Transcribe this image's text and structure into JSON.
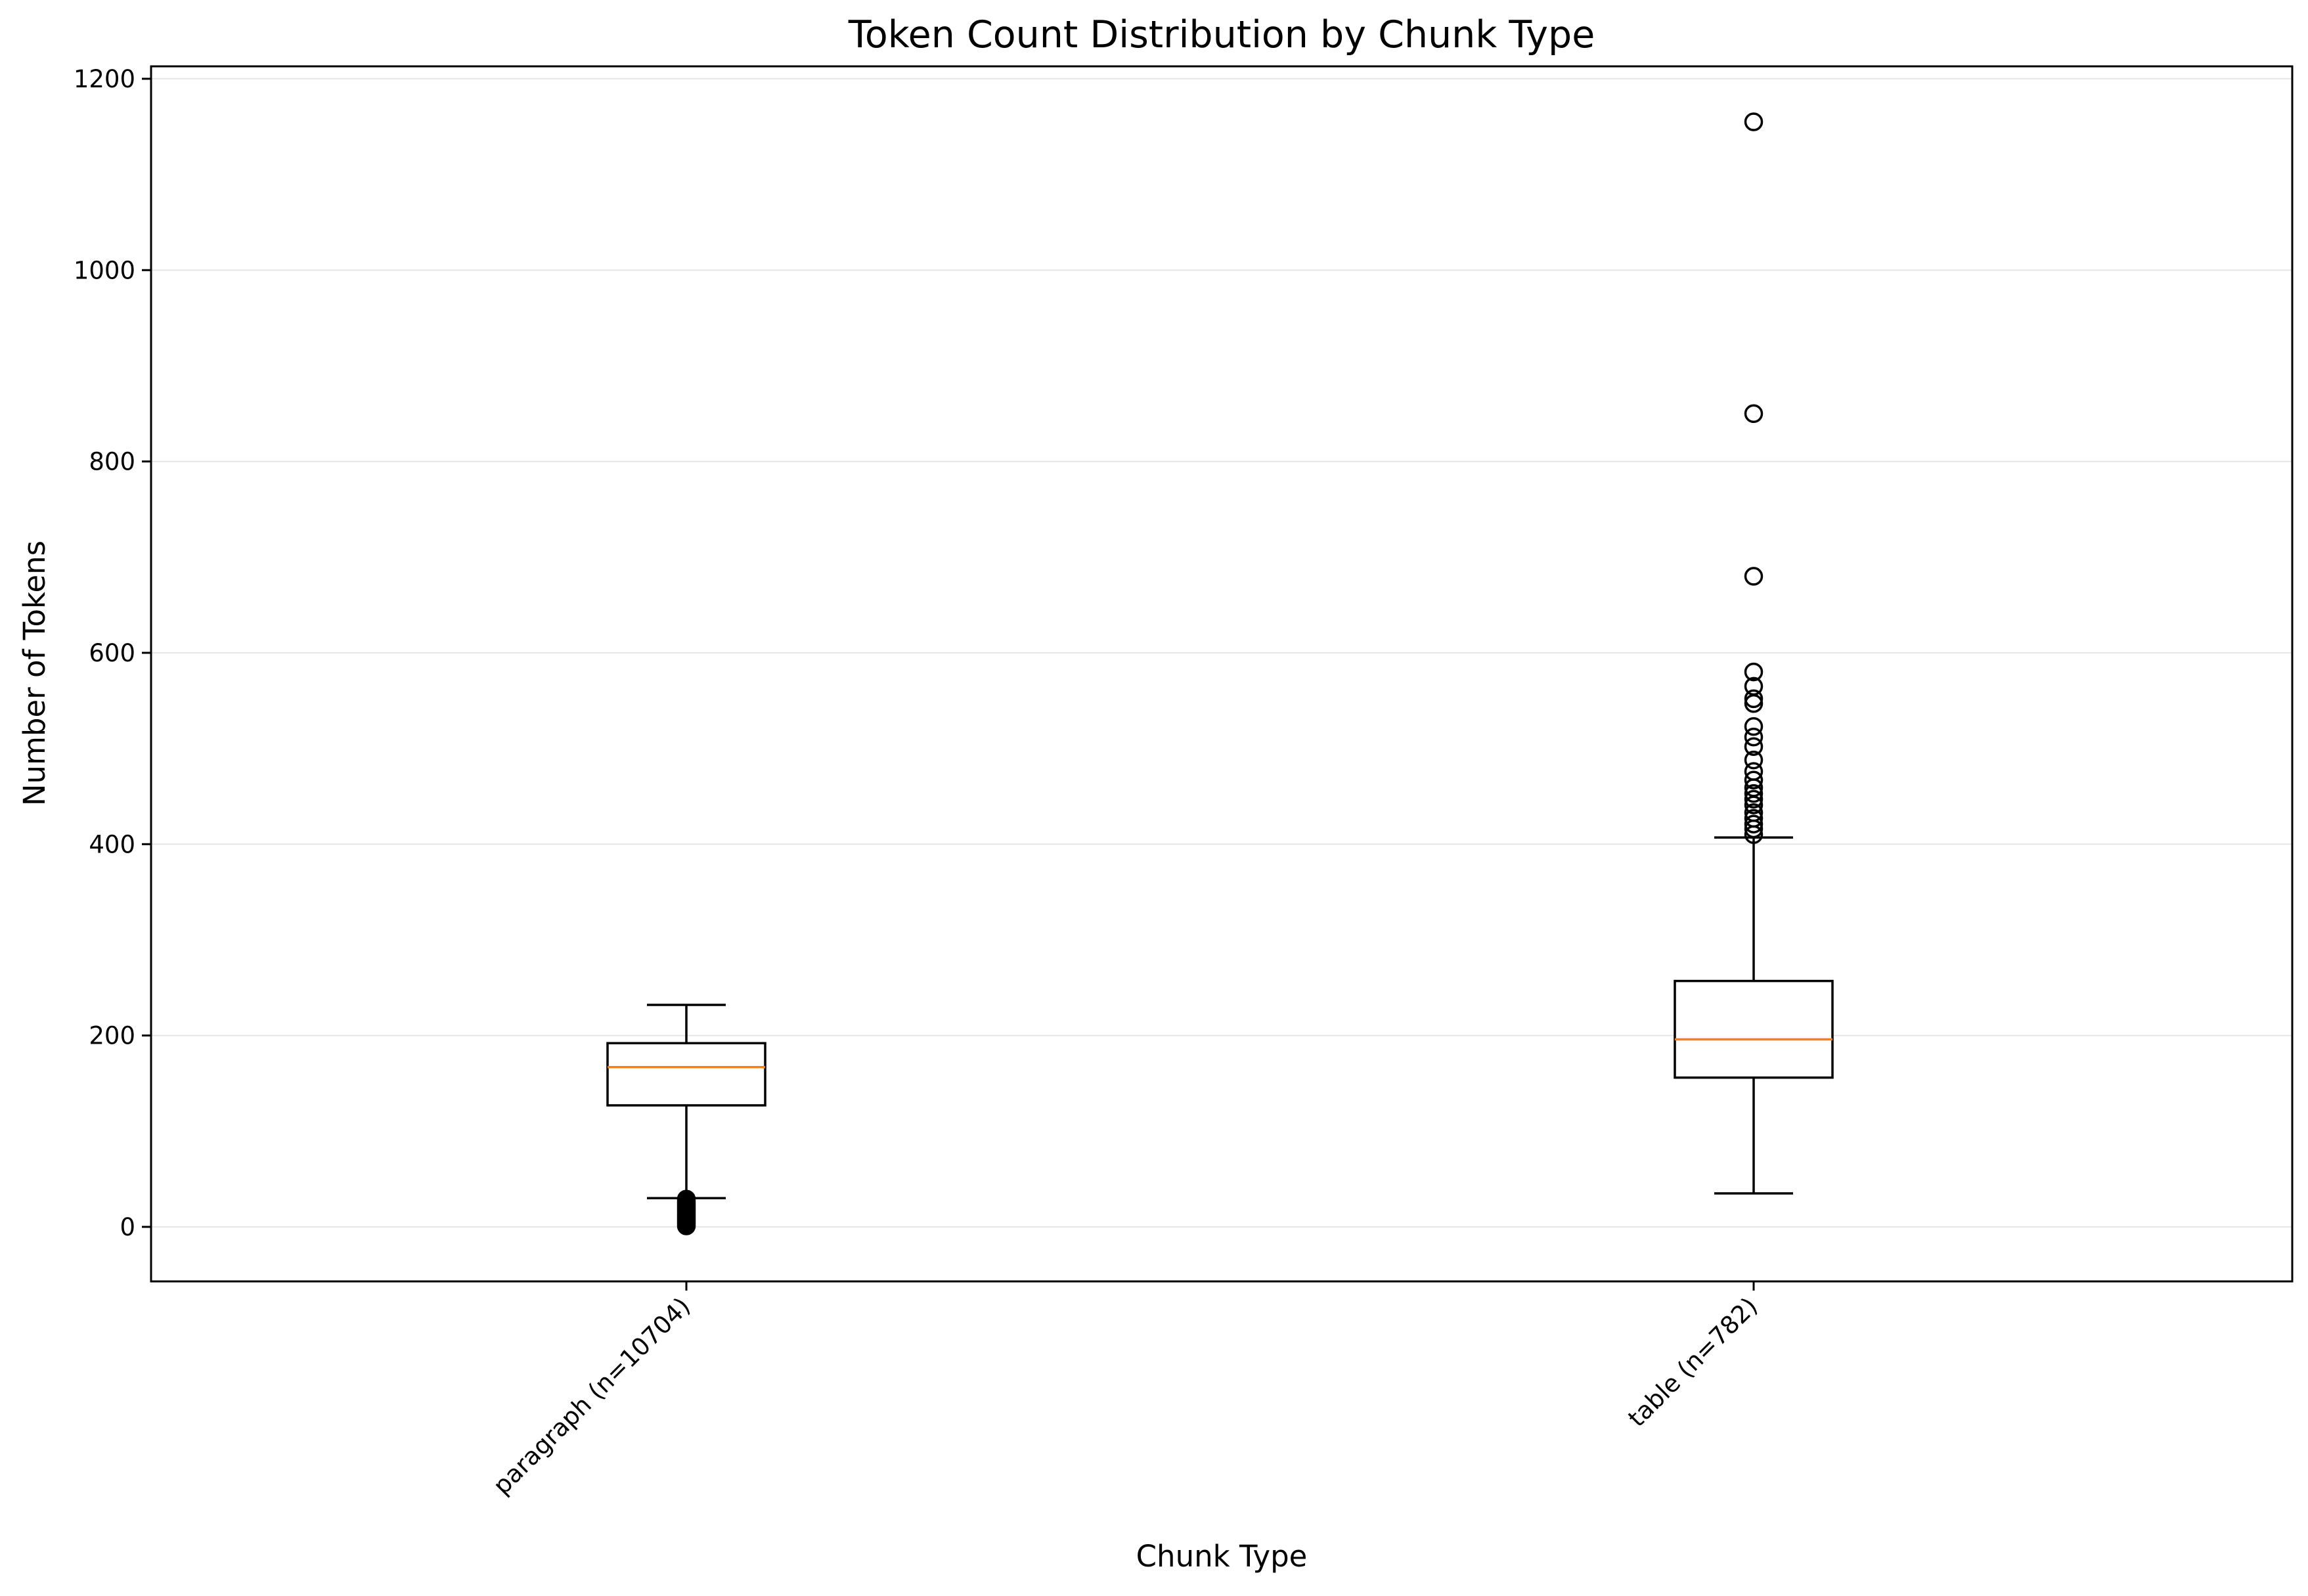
{
  "chart_data": {
    "type": "box",
    "title": "Token Count Distribution by Chunk Type",
    "xlabel": "Chunk Type",
    "ylabel": "Number of Tokens",
    "ylim": [
      -57,
      1213
    ],
    "yticks": [
      0,
      200,
      400,
      600,
      800,
      1000,
      1200
    ],
    "grid": "horizontal",
    "categories": [
      "paragraph (n=10704)",
      "table (n=782)"
    ],
    "boxes": [
      {
        "category": "paragraph (n=10704)",
        "whisker_low": 30,
        "q1": 127,
        "median": 167,
        "q3": 192,
        "whisker_high": 232,
        "outliers": [
          29,
          27,
          25,
          23,
          21,
          19,
          17,
          15,
          13,
          11,
          9,
          7,
          5,
          3,
          1
        ]
      },
      {
        "category": "table (n=782)",
        "whisker_low": 35,
        "q1": 156,
        "median": 196,
        "q3": 257,
        "whisker_high": 407,
        "outliers": [
          410,
          416,
          421,
          427,
          433,
          441,
          447,
          453,
          459,
          467,
          476,
          488,
          502,
          512,
          523,
          547,
          552,
          565,
          580,
          680,
          850,
          1155
        ]
      }
    ],
    "colors": {
      "box": "#000000",
      "median": "#ff7f0e",
      "grid": "#e6e6e6"
    }
  }
}
